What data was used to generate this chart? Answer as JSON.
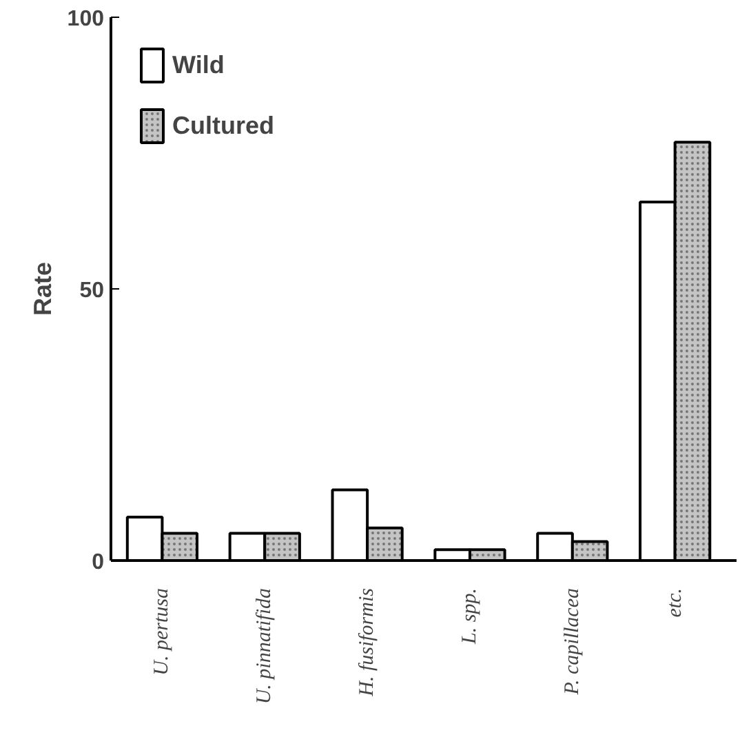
{
  "chart_data": {
    "type": "bar",
    "ylabel": "Rate",
    "categories": [
      "U. pertusa",
      "U. pinnatifida",
      "H. fusiformis",
      "L. spp.",
      "P. capillacea",
      "etc."
    ],
    "series": [
      {
        "name": "Wild",
        "color": "#ffffff",
        "values": [
          8,
          5,
          13,
          2,
          5,
          66
        ]
      },
      {
        "name": "Cultured",
        "color": "#c4c4c4",
        "values": [
          5,
          5,
          6,
          2,
          3.5,
          77
        ]
      }
    ],
    "ylim": [
      0,
      100
    ],
    "yticks": [
      0,
      50,
      100
    ],
    "grid": false,
    "legend": "top left"
  }
}
